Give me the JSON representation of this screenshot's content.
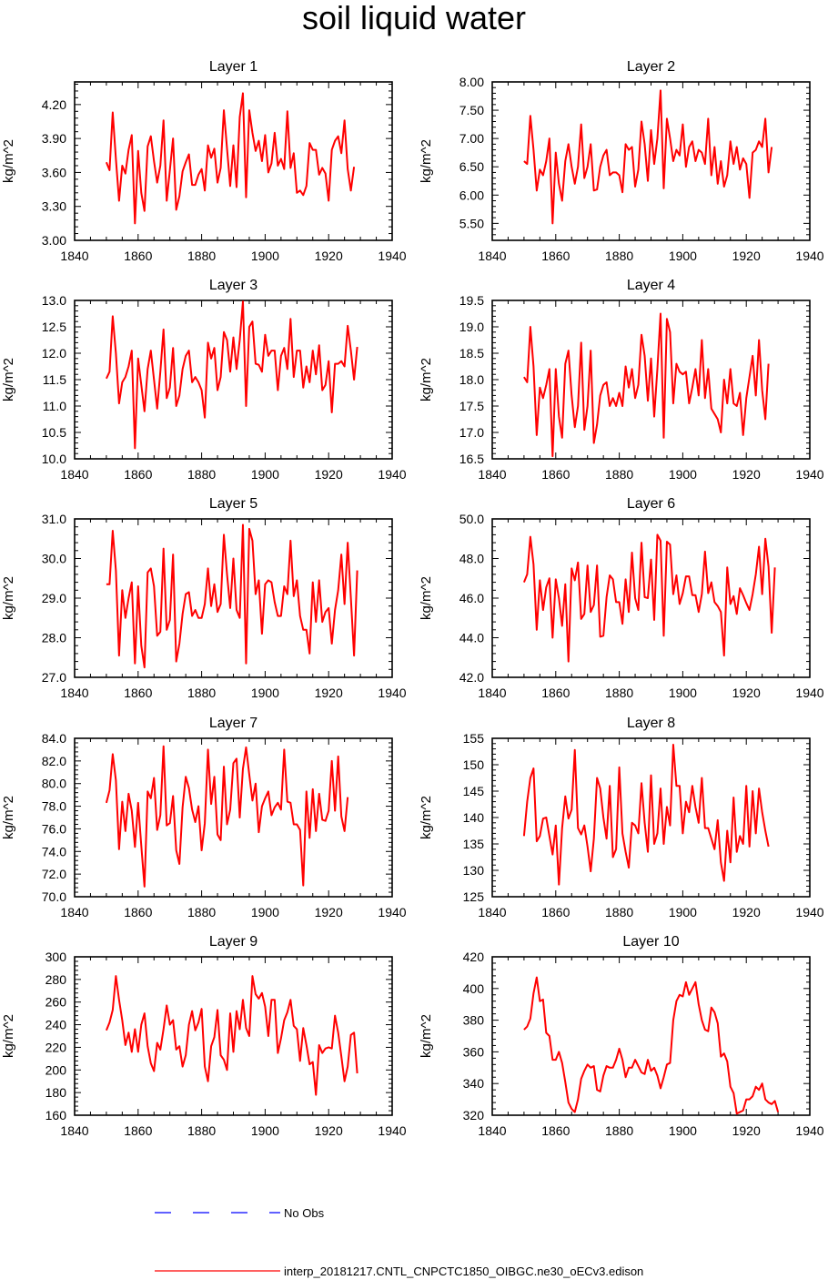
{
  "title": "soil liquid water",
  "colors": {
    "model": "#ff0000",
    "obs": "#0000ff",
    "axis": "#000000"
  },
  "legend": {
    "obs_label": "No Obs",
    "model_label": "interp_20181217.CNTL_CNPCTC1850_OIBGC.ne30_oECv3.edison"
  },
  "chart_data": [
    {
      "type": "line",
      "title": "Layer 1",
      "ylabel": "kg/m^2",
      "xlabel": "",
      "xlim": [
        1840,
        1940
      ],
      "ylim": [
        3.0,
        4.4
      ],
      "xticks": [
        "1840",
        "1860",
        "1880",
        "1900",
        "1920",
        "1940"
      ],
      "yticks": [
        "3.00",
        "3.30",
        "3.60",
        "3.90",
        "4.20"
      ],
      "grid": false,
      "x_start": 1850,
      "values": [
        3.69,
        3.62,
        4.13,
        3.72,
        3.35,
        3.66,
        3.59,
        3.8,
        3.93,
        3.15,
        3.79,
        3.42,
        3.26,
        3.83,
        3.92,
        3.7,
        3.51,
        3.66,
        4.06,
        3.35,
        3.62,
        3.9,
        3.27,
        3.39,
        3.61,
        3.69,
        3.76,
        3.49,
        3.49,
        3.58,
        3.63,
        3.44,
        3.84,
        3.73,
        3.81,
        3.51,
        3.64,
        4.15,
        3.81,
        3.48,
        3.84,
        3.47,
        4.09,
        4.3,
        3.38,
        4.15,
        3.95,
        3.79,
        3.88,
        3.7,
        3.93,
        3.6,
        3.68,
        3.95,
        3.66,
        3.72,
        3.63,
        4.14,
        3.64,
        3.77,
        3.42,
        3.44,
        3.4,
        3.48,
        3.86,
        3.8,
        3.8,
        3.58,
        3.64,
        3.59,
        3.35,
        3.8,
        3.88,
        3.92,
        3.77,
        4.06,
        3.63,
        3.44,
        3.65
      ]
    },
    {
      "type": "line",
      "title": "Layer 2",
      "ylabel": "kg/m^2",
      "xlabel": "",
      "xlim": [
        1840,
        1940
      ],
      "ylim": [
        5.2,
        8.0
      ],
      "xticks": [
        "1840",
        "1860",
        "1880",
        "1900",
        "1920",
        "1940"
      ],
      "yticks": [
        "5.50",
        "6.00",
        "6.50",
        "7.00",
        "7.50",
        "8.00"
      ],
      "grid": false,
      "x_start": 1850,
      "values": [
        6.6,
        6.55,
        7.4,
        6.8,
        6.08,
        6.45,
        6.35,
        6.6,
        7.0,
        5.5,
        6.75,
        6.2,
        5.9,
        6.6,
        6.9,
        6.5,
        6.2,
        6.5,
        7.25,
        6.3,
        6.5,
        6.9,
        6.08,
        6.1,
        6.5,
        6.7,
        6.8,
        6.35,
        6.4,
        6.4,
        6.35,
        6.05,
        6.9,
        6.8,
        6.85,
        6.15,
        6.45,
        7.3,
        6.9,
        6.25,
        7.15,
        6.55,
        7.0,
        7.85,
        6.12,
        7.35,
        7.0,
        6.6,
        6.8,
        6.7,
        7.25,
        6.5,
        6.85,
        6.95,
        6.6,
        6.8,
        6.75,
        6.55,
        7.35,
        6.35,
        6.85,
        6.2,
        6.6,
        6.15,
        6.35,
        6.95,
        6.55,
        6.85,
        6.45,
        6.65,
        6.55,
        5.95,
        6.75,
        6.8,
        6.95,
        6.85,
        7.35,
        6.4,
        6.85
      ]
    },
    {
      "type": "line",
      "title": "Layer 3",
      "ylabel": "kg/m^2",
      "xlabel": "",
      "xlim": [
        1840,
        1940
      ],
      "ylim": [
        10.0,
        13.0
      ],
      "xticks": [
        "1840",
        "1860",
        "1880",
        "1900",
        "1920",
        "1940"
      ],
      "yticks": [
        "10.0",
        "10.5",
        "11.0",
        "11.5",
        "12.0",
        "12.5",
        "13.0"
      ],
      "grid": false,
      "x_start": 1850,
      "values": [
        11.52,
        11.65,
        12.7,
        12.0,
        11.05,
        11.45,
        11.55,
        11.75,
        12.05,
        10.2,
        11.9,
        11.4,
        10.9,
        11.7,
        12.05,
        11.5,
        10.95,
        11.65,
        12.45,
        11.15,
        11.35,
        12.1,
        11.0,
        11.2,
        11.7,
        11.95,
        12.05,
        11.45,
        11.55,
        11.45,
        11.3,
        10.78,
        12.2,
        11.9,
        12.1,
        11.3,
        11.55,
        12.4,
        12.25,
        11.65,
        12.3,
        11.7,
        12.25,
        12.98,
        11.0,
        12.5,
        12.6,
        11.8,
        11.78,
        11.65,
        12.35,
        11.95,
        12.05,
        12.05,
        11.3,
        11.95,
        12.1,
        11.7,
        12.65,
        11.55,
        12.05,
        12.05,
        11.35,
        11.75,
        11.45,
        12.05,
        11.6,
        12.15,
        11.3,
        11.4,
        11.85,
        10.88,
        11.8,
        11.8,
        11.85,
        11.75,
        12.52,
        12.05,
        11.5,
        12.12
      ]
    },
    {
      "type": "line",
      "title": "Layer 4",
      "ylabel": "kg/m^2",
      "xlabel": "",
      "xlim": [
        1840,
        1940
      ],
      "ylim": [
        16.5,
        19.5
      ],
      "xticks": [
        "1840",
        "1860",
        "1880",
        "1900",
        "1920",
        "1940"
      ],
      "yticks": [
        "16.5",
        "17.0",
        "17.5",
        "18.0",
        "18.5",
        "19.0",
        "19.5"
      ],
      "grid": false,
      "x_start": 1850,
      "values": [
        18.05,
        17.95,
        19.0,
        18.25,
        16.95,
        17.85,
        17.65,
        17.9,
        18.2,
        16.55,
        18.2,
        17.3,
        16.9,
        18.3,
        18.55,
        17.7,
        17.1,
        17.5,
        18.7,
        17.05,
        17.5,
        18.55,
        16.8,
        17.15,
        17.7,
        17.9,
        17.95,
        17.5,
        17.65,
        17.5,
        17.75,
        17.5,
        18.25,
        17.85,
        18.2,
        17.65,
        17.9,
        18.85,
        18.45,
        17.6,
        18.4,
        17.3,
        18.2,
        19.25,
        16.9,
        19.15,
        18.9,
        17.55,
        18.3,
        18.15,
        18.1,
        18.15,
        17.55,
        17.85,
        18.2,
        17.7,
        18.75,
        17.65,
        18.2,
        17.45,
        17.35,
        17.25,
        17.0,
        18.0,
        17.55,
        18.2,
        17.55,
        17.5,
        17.75,
        16.95,
        17.65,
        18.05,
        18.45,
        17.7,
        18.75,
        17.8,
        17.25,
        18.3
      ]
    },
    {
      "type": "line",
      "title": "Layer 5",
      "ylabel": "kg/m^2",
      "xlabel": "",
      "xlim": [
        1840,
        1940
      ],
      "ylim": [
        27.0,
        31.0
      ],
      "xticks": [
        "1840",
        "1860",
        "1880",
        "1900",
        "1920",
        "1940"
      ],
      "yticks": [
        "27.0",
        "28.0",
        "29.0",
        "30.0",
        "31.0"
      ],
      "grid": false,
      "x_start": 1850,
      "values": [
        29.35,
        29.35,
        30.7,
        29.7,
        27.55,
        29.2,
        28.5,
        29.0,
        29.4,
        27.35,
        29.3,
        27.8,
        27.25,
        29.65,
        29.75,
        29.3,
        28.05,
        28.15,
        30.25,
        28.2,
        28.45,
        30.1,
        27.4,
        27.85,
        28.6,
        29.1,
        29.15,
        28.55,
        28.7,
        28.5,
        28.5,
        28.85,
        29.75,
        28.8,
        29.35,
        28.65,
        28.85,
        30.6,
        29.6,
        28.75,
        30.0,
        28.7,
        28.5,
        30.85,
        27.35,
        30.75,
        30.45,
        29.1,
        29.45,
        28.1,
        29.35,
        29.45,
        29.4,
        28.9,
        28.55,
        28.55,
        29.3,
        29.1,
        30.45,
        29.05,
        29.45,
        28.55,
        28.2,
        28.2,
        27.6,
        29.4,
        28.4,
        29.45,
        28.4,
        28.65,
        28.75,
        27.85,
        28.7,
        29.2,
        30.1,
        28.85,
        30.4,
        29.0,
        27.55,
        29.7
      ]
    },
    {
      "type": "line",
      "title": "Layer 6",
      "ylabel": "kg/m^2",
      "xlabel": "",
      "xlim": [
        1840,
        1940
      ],
      "ylim": [
        42.0,
        50.0
      ],
      "xticks": [
        "1840",
        "1860",
        "1880",
        "1900",
        "1920",
        "1940"
      ],
      "yticks": [
        "42.0",
        "44.0",
        "46.0",
        "48.0",
        "50.0"
      ],
      "grid": false,
      "x_start": 1850,
      "values": [
        46.8,
        47.2,
        49.1,
        47.7,
        44.4,
        46.9,
        45.4,
        46.55,
        47.0,
        44.0,
        46.95,
        46.0,
        44.6,
        46.7,
        42.8,
        47.5,
        46.9,
        47.8,
        44.95,
        45.2,
        47.65,
        45.3,
        45.65,
        47.65,
        44.05,
        44.1,
        46.05,
        47.15,
        46.95,
        45.8,
        45.8,
        44.7,
        46.95,
        45.3,
        48.3,
        46.0,
        45.4,
        48.8,
        46.05,
        46.0,
        47.95,
        44.9,
        49.2,
        48.9,
        44.1,
        48.85,
        48.7,
        46.2,
        47.15,
        45.7,
        46.25,
        47.1,
        47.1,
        46.15,
        46.15,
        45.3,
        46.2,
        48.35,
        46.25,
        46.8,
        45.8,
        45.6,
        45.3,
        43.1,
        47.55,
        45.7,
        46.1,
        45.2,
        46.5,
        46.15,
        45.75,
        45.4,
        46.2,
        47.2,
        48.6,
        46.2,
        49.0,
        47.6,
        44.25,
        47.55
      ]
    },
    {
      "type": "line",
      "title": "Layer 7",
      "ylabel": "kg/m^2",
      "xlabel": "",
      "xlim": [
        1840,
        1940
      ],
      "ylim": [
        70.0,
        84.0
      ],
      "xticks": [
        "1840",
        "1860",
        "1880",
        "1900",
        "1920",
        "1940"
      ],
      "yticks": [
        "70.0",
        "72.0",
        "74.0",
        "76.0",
        "78.0",
        "80.0",
        "82.0",
        "84.0"
      ],
      "grid": false,
      "x_start": 1850,
      "values": [
        78.3,
        79.4,
        82.6,
        80.3,
        74.2,
        78.4,
        75.8,
        79.1,
        77.6,
        74.4,
        78.3,
        74.5,
        70.9,
        79.3,
        78.7,
        80.5,
        75.9,
        77.2,
        83.3,
        76.3,
        76.5,
        78.9,
        74.1,
        72.9,
        77.9,
        80.6,
        79.6,
        77.7,
        76.6,
        78.0,
        74.1,
        76.5,
        83.0,
        78.2,
        80.6,
        75.5,
        75.0,
        81.5,
        76.4,
        77.7,
        81.8,
        82.2,
        77.0,
        81.3,
        83.2,
        80.8,
        78.5,
        80.0,
        75.7,
        78.0,
        78.7,
        79.3,
        77.2,
        77.9,
        78.3,
        77.7,
        83.0,
        78.4,
        78.3,
        76.4,
        76.4,
        75.9,
        71.0,
        79.3,
        75.2,
        79.5,
        75.8,
        79.1,
        76.8,
        76.7,
        77.6,
        82.0,
        77.6,
        82.4,
        77.1,
        75.8,
        78.8
      ]
    },
    {
      "type": "line",
      "title": "Layer 8",
      "ylabel": "kg/m^2",
      "xlabel": "",
      "xlim": [
        1840,
        1940
      ],
      "ylim": [
        125,
        155
      ],
      "xticks": [
        "1840",
        "1860",
        "1880",
        "1900",
        "1920",
        "1940"
      ],
      "yticks": [
        "125",
        "130",
        "135",
        "140",
        "145",
        "150",
        "155"
      ],
      "grid": false,
      "x_start": 1850,
      "values": [
        136.5,
        143.0,
        147.5,
        149.3,
        135.5,
        136.5,
        139.8,
        140.0,
        136.5,
        133.0,
        138.5,
        127.3,
        138.0,
        144.0,
        139.8,
        141.5,
        152.8,
        138.0,
        136.8,
        138.5,
        134.5,
        129.8,
        136.0,
        147.5,
        145.5,
        140.0,
        136.0,
        146.0,
        132.5,
        134.0,
        149.5,
        137.0,
        133.5,
        130.5,
        139.0,
        138.5,
        137.0,
        146.5,
        139.0,
        133.5,
        148.0,
        135.0,
        137.0,
        145.5,
        135.0,
        142.0,
        138.5,
        153.8,
        146.0,
        146.0,
        137.0,
        143.0,
        141.0,
        146.0,
        142.0,
        139.0,
        147.5,
        138.0,
        138.0,
        136.0,
        134.0,
        139.5,
        131.5,
        128.0,
        137.5,
        131.5,
        143.8,
        133.5,
        136.5,
        135.0,
        146.0,
        134.5,
        145.0,
        137.0,
        145.5,
        141.0,
        137.5,
        134.5
      ]
    },
    {
      "type": "line",
      "title": "Layer 9",
      "ylabel": "kg/m^2",
      "xlabel": "",
      "xlim": [
        1840,
        1940
      ],
      "ylim": [
        160,
        300
      ],
      "xticks": [
        "1840",
        "1860",
        "1880",
        "1900",
        "1920",
        "1940"
      ],
      "yticks": [
        "160",
        "180",
        "200",
        "220",
        "240",
        "260",
        "280",
        "300"
      ],
      "grid": false,
      "x_start": 1850,
      "values": [
        235,
        242,
        253,
        283,
        262,
        244,
        222,
        233,
        216,
        236,
        216,
        240,
        250,
        221,
        206,
        199,
        224,
        218,
        236,
        257,
        240,
        244,
        218,
        221,
        203,
        213,
        240,
        252,
        235,
        242,
        254,
        203,
        190,
        221,
        229,
        253,
        213,
        209,
        200,
        250,
        216,
        252,
        236,
        262,
        237,
        230,
        283,
        267,
        263,
        268,
        256,
        230,
        262,
        262,
        215,
        228,
        244,
        251,
        262,
        239,
        236,
        208,
        237,
        222,
        205,
        207,
        178,
        222,
        215,
        219,
        220,
        219,
        248,
        233,
        212,
        190,
        203,
        231,
        233,
        197
      ]
    },
    {
      "type": "line",
      "title": "Layer 10",
      "ylabel": "kg/m^2",
      "xlabel": "",
      "xlim": [
        1840,
        1940
      ],
      "ylim": [
        320,
        420
      ],
      "xticks": [
        "1840",
        "1860",
        "1880",
        "1900",
        "1920",
        "1940"
      ],
      "yticks": [
        "320",
        "340",
        "360",
        "380",
        "400",
        "420"
      ],
      "grid": false,
      "x_start": 1850,
      "values": [
        374,
        376,
        381,
        397,
        407,
        392,
        393,
        372,
        370,
        355,
        355,
        360,
        353,
        341,
        328,
        324,
        322,
        330,
        343,
        348,
        352,
        350,
        351,
        336,
        335,
        345,
        351,
        350,
        350,
        355,
        362,
        355,
        344,
        350,
        350,
        355,
        351,
        347,
        346,
        355,
        348,
        350,
        345,
        337,
        344,
        352,
        353,
        380,
        392,
        396,
        395,
        404,
        396,
        400,
        404,
        390,
        380,
        374,
        373,
        388,
        385,
        378,
        357,
        359,
        354,
        338,
        334,
        321,
        322,
        323,
        330,
        330,
        332,
        338,
        336,
        340,
        330,
        328,
        327,
        329,
        322
      ]
    }
  ]
}
